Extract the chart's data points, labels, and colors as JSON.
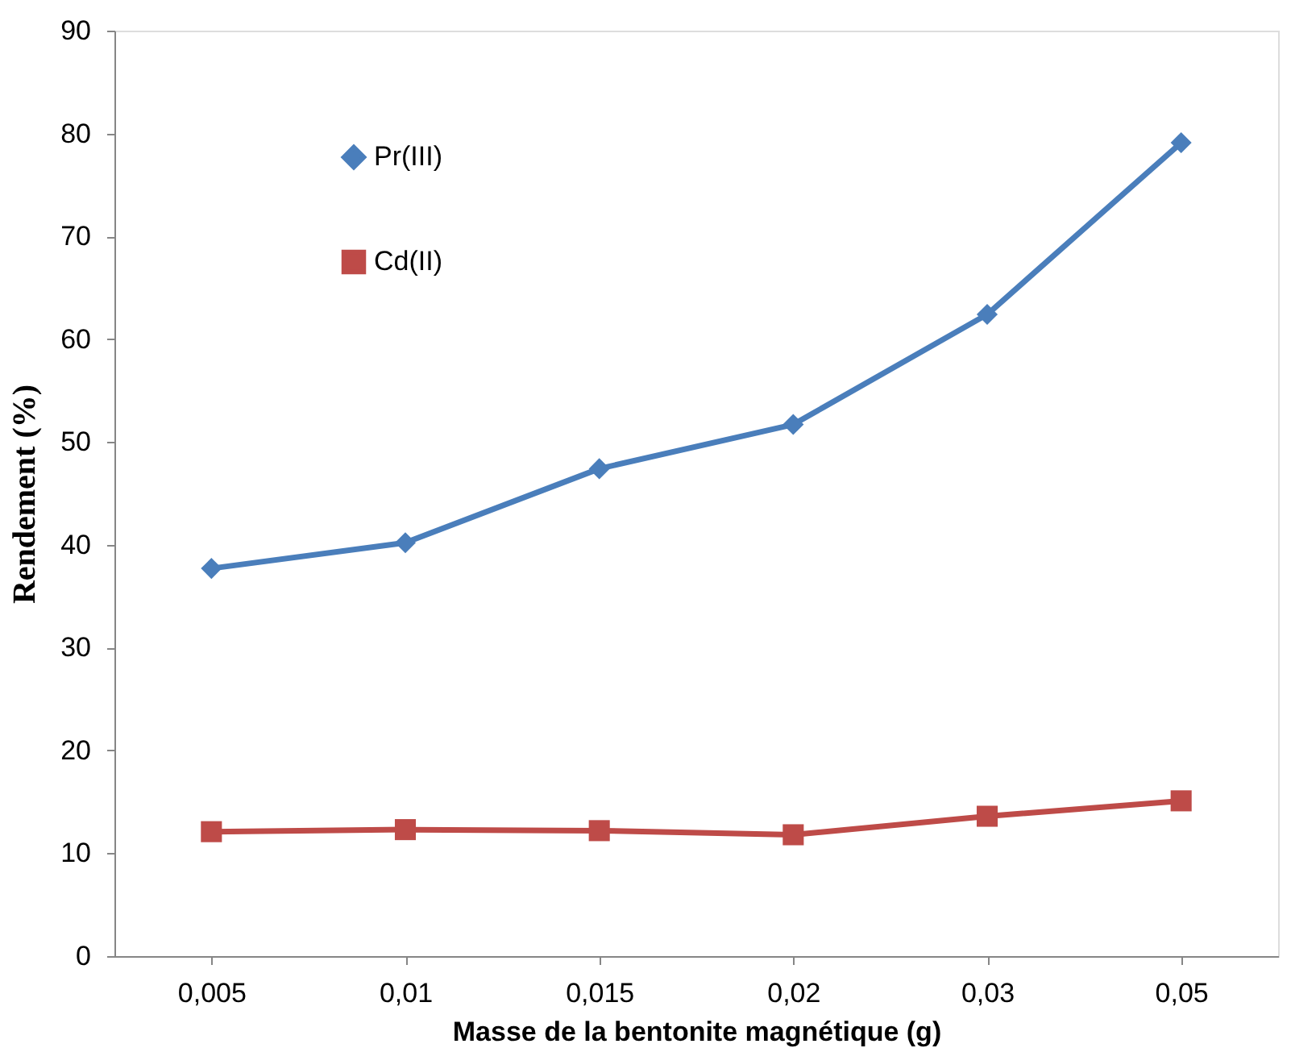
{
  "chart_data": {
    "type": "line",
    "xlabel": "Masse  de  la bentonite magnétique  (g)",
    "ylabel": "Rendement (%)",
    "categories": [
      "0,005",
      "0,01",
      "0,015",
      "0,02",
      "0,03",
      "0,05"
    ],
    "series": [
      {
        "name": "Pr(III)",
        "color": "#4a7ebb",
        "marker": "diamond",
        "values": [
          37.7,
          40.2,
          47.4,
          51.7,
          62.4,
          79.1
        ]
      },
      {
        "name": "Cd(II)",
        "color": "#be4b48",
        "marker": "square",
        "values": [
          12.1,
          12.3,
          12.2,
          11.8,
          13.6,
          15.1
        ]
      }
    ],
    "ylim": [
      0,
      90
    ],
    "yticks": [
      0,
      10,
      20,
      30,
      40,
      50,
      60,
      70,
      80,
      90
    ],
    "grid": false,
    "legend": "top left",
    "line_style": "solid"
  }
}
